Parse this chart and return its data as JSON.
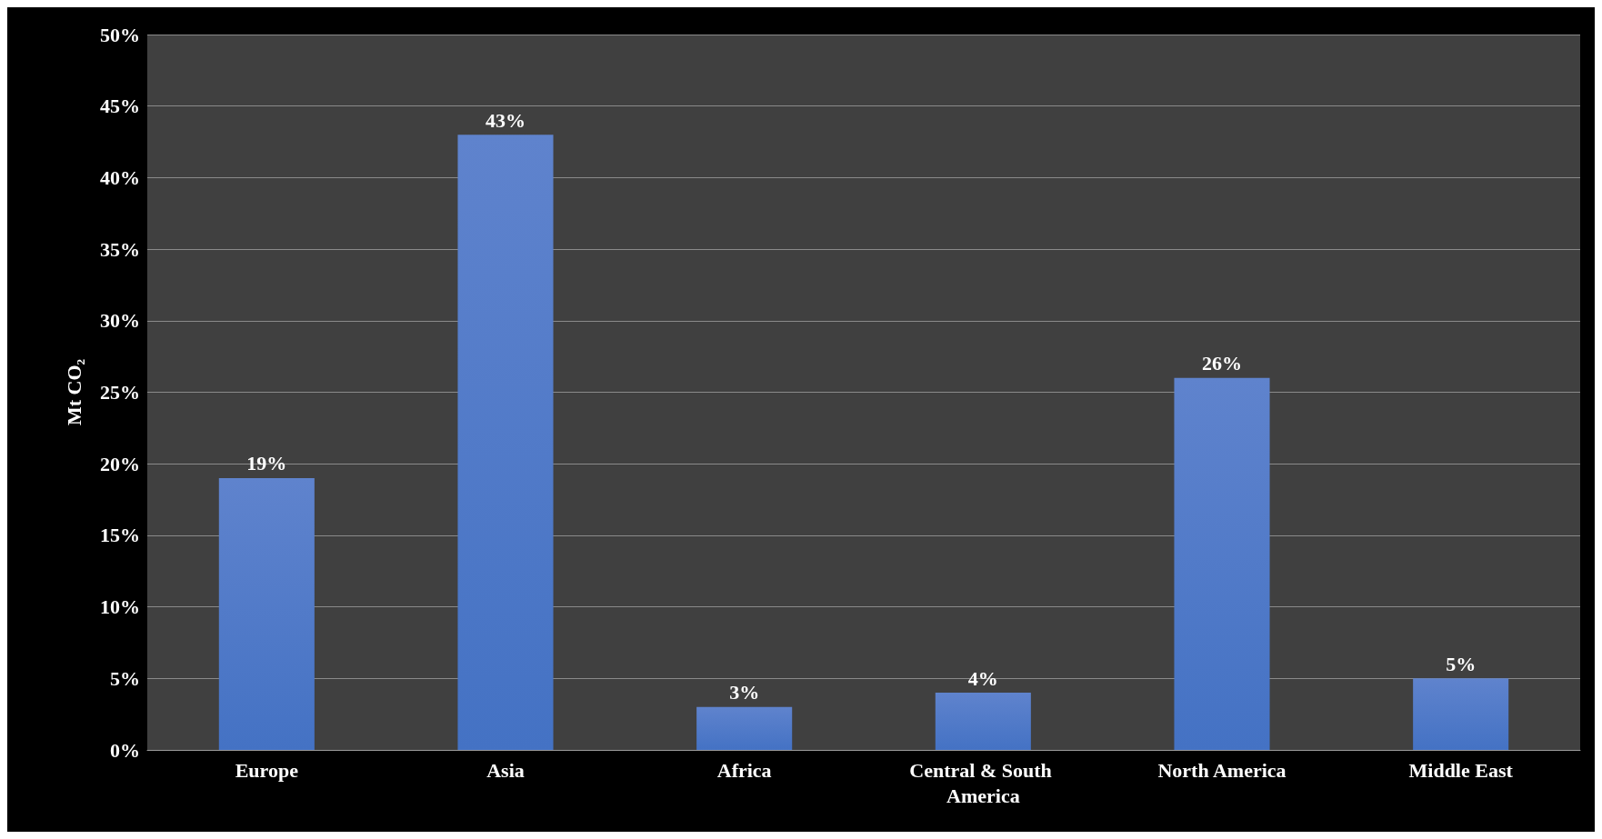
{
  "chart_data": {
    "type": "bar",
    "ylabel": "Mt CO₂",
    "categories": [
      "Europe",
      "Asia",
      "Africa",
      "Central & South America",
      "North America",
      "Middle East"
    ],
    "values": [
      19,
      43,
      3,
      4,
      26,
      5
    ],
    "value_labels": [
      "19%",
      "43%",
      "3%",
      "4%",
      "26%",
      "5%"
    ],
    "color": "#4472c4",
    "ylim": [
      0,
      50
    ],
    "yticks": [
      {
        "value": 0,
        "label": "0%"
      },
      {
        "value": 5,
        "label": "5%"
      },
      {
        "value": 10,
        "label": "10%"
      },
      {
        "value": 15,
        "label": "15%"
      },
      {
        "value": 20,
        "label": "20%"
      },
      {
        "value": 25,
        "label": "25%"
      },
      {
        "value": 30,
        "label": "30%"
      },
      {
        "value": 35,
        "label": "35%"
      },
      {
        "value": 40,
        "label": "40%"
      },
      {
        "value": 45,
        "label": "45%"
      },
      {
        "value": 50,
        "label": "50%"
      }
    ],
    "grid": "y"
  }
}
